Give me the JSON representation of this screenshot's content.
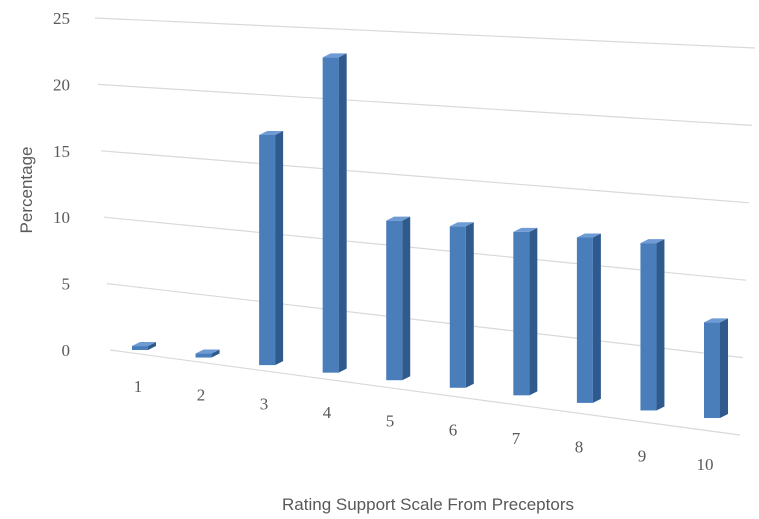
{
  "chart_data": {
    "type": "bar",
    "title": "",
    "xlabel": "Rating Support Scale From Preceptors",
    "ylabel": "Percentage",
    "categories": [
      "1",
      "2",
      "3",
      "4",
      "5",
      "6",
      "7",
      "8",
      "9",
      "10"
    ],
    "values": [
      0.3,
      0.3,
      17,
      23,
      11.5,
      11.5,
      11.5,
      11.5,
      11.5,
      6.5
    ],
    "ylim": [
      0,
      25
    ],
    "yticks": [
      "0",
      "5",
      "10",
      "15",
      "20",
      "25"
    ],
    "grid": true,
    "legend": "none",
    "style": "3d-perspective",
    "colors": {
      "bar_front": "#4a7ebb",
      "bar_side": "#2f5a8e",
      "bar_top": "#6f9bd4",
      "grid": "#d9d9d9",
      "text": "#595959"
    }
  }
}
